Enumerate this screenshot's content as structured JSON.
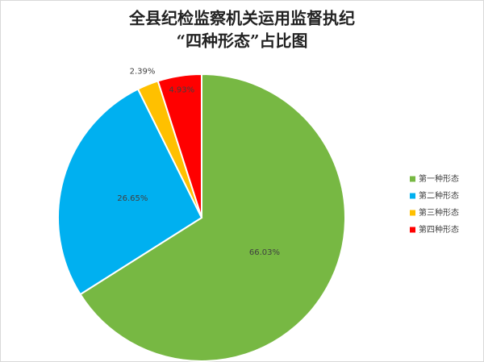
{
  "chart_data": {
    "type": "pie",
    "title": [
      "全县纪检监察机关运用监督执纪",
      "“四种形态”占比图"
    ],
    "categories": [
      "第一种形态",
      "第二种形态",
      "第三种形态",
      "第四种形态"
    ],
    "values": [
      66.03,
      26.65,
      2.39,
      4.93
    ],
    "value_labels": [
      "66.03%",
      "26.65%",
      "2.39%",
      "4.93%"
    ],
    "colors": [
      "#77b843",
      "#00b0f0",
      "#ffc000",
      "#ff0000"
    ],
    "legend": "right"
  }
}
